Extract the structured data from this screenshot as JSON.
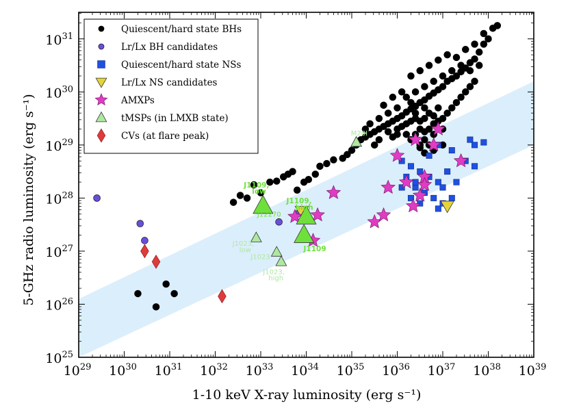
{
  "chart_data": {
    "type": "scatter",
    "xlabel": "1-10 keV X-ray luminosity (erg s⁻¹)",
    "ylabel": "5-GHz radio luminosity (erg s⁻¹)",
    "xscale": "log",
    "yscale": "log",
    "xlim_exp": [
      29,
      39
    ],
    "ylim_exp": [
      25,
      31.5
    ],
    "x_tick_exponents": [
      29,
      30,
      31,
      32,
      33,
      34,
      35,
      36,
      37,
      38,
      39
    ],
    "y_tick_exponents": [
      25,
      26,
      27,
      28,
      29,
      30,
      31
    ],
    "tick_base": "10",
    "legend_position": "top-left",
    "colors": {
      "bh": "#000000",
      "bh_candidate": "#6a4fd6",
      "ns": "#1f50e0",
      "ns_candidate": "#e3d43b",
      "amxp": "#e03bc4",
      "tmsp": "#aee8a0",
      "tmsp_bright": "#6fe03b",
      "cv": "#e03b3b",
      "band": "#dbeefb"
    },
    "band": {
      "lower_at_29": 25.0,
      "lower_at_39": 29.0,
      "upper_at_29": 26.1,
      "upper_at_39": 30.2
    },
    "series": [
      {
        "name": "Quiescent/hard state BHs",
        "marker": "circle",
        "color_key": "bh",
        "points": [
          [
            30.3,
            26.2
          ],
          [
            30.7,
            25.95
          ],
          [
            30.92,
            26.38
          ],
          [
            31.1,
            26.2
          ],
          [
            33.8,
            28.15
          ],
          [
            33.95,
            28.3
          ],
          [
            34.05,
            28.35
          ],
          [
            34.2,
            28.45
          ],
          [
            32.4,
            27.92
          ],
          [
            32.55,
            28.05
          ],
          [
            32.7,
            28.0
          ],
          [
            32.85,
            28.25
          ],
          [
            33.0,
            28.1
          ],
          [
            33.2,
            28.3
          ],
          [
            33.35,
            28.32
          ],
          [
            33.5,
            28.4
          ],
          [
            33.6,
            28.45
          ],
          [
            33.7,
            28.5
          ],
          [
            34.3,
            28.6
          ],
          [
            34.45,
            28.65
          ],
          [
            34.6,
            28.72
          ],
          [
            34.8,
            28.75
          ],
          [
            34.9,
            28.82
          ],
          [
            35.0,
            28.9
          ],
          [
            35.1,
            29.0
          ],
          [
            35.2,
            29.1
          ],
          [
            35.3,
            29.15
          ],
          [
            35.4,
            29.2
          ],
          [
            35.5,
            29.25
          ],
          [
            35.6,
            29.3
          ],
          [
            35.7,
            29.35
          ],
          [
            35.8,
            29.4
          ],
          [
            35.9,
            29.45
          ],
          [
            36.0,
            29.5
          ],
          [
            36.1,
            29.55
          ],
          [
            36.2,
            29.62
          ],
          [
            36.3,
            29.68
          ],
          [
            36.4,
            29.73
          ],
          [
            36.5,
            29.8
          ],
          [
            36.6,
            29.85
          ],
          [
            36.7,
            29.92
          ],
          [
            36.8,
            29.98
          ],
          [
            36.9,
            30.04
          ],
          [
            37.0,
            30.1
          ],
          [
            37.1,
            30.2
          ],
          [
            37.2,
            30.25
          ],
          [
            37.3,
            30.3
          ],
          [
            37.4,
            30.38
          ],
          [
            37.5,
            30.45
          ],
          [
            37.6,
            30.55
          ],
          [
            37.7,
            30.62
          ],
          [
            37.8,
            30.75
          ],
          [
            37.9,
            30.9
          ],
          [
            38.0,
            31.0
          ],
          [
            38.1,
            31.2
          ],
          [
            38.2,
            31.25
          ],
          [
            35.5,
            29.0
          ],
          [
            35.6,
            29.1
          ],
          [
            35.8,
            29.25
          ],
          [
            36.0,
            29.3
          ],
          [
            36.1,
            29.35
          ],
          [
            36.2,
            29.4
          ],
          [
            36.3,
            29.45
          ],
          [
            36.4,
            29.5
          ],
          [
            36.5,
            29.45
          ],
          [
            36.6,
            29.5
          ],
          [
            36.7,
            29.6
          ],
          [
            36.8,
            29.55
          ],
          [
            36.9,
            29.7
          ],
          [
            36.4,
            29.2
          ],
          [
            36.5,
            29.3
          ],
          [
            36.6,
            29.25
          ],
          [
            36.7,
            29.3
          ],
          [
            36.8,
            29.4
          ],
          [
            36.9,
            29.45
          ],
          [
            37.0,
            29.5
          ],
          [
            37.1,
            29.6
          ],
          [
            37.2,
            29.7
          ],
          [
            37.3,
            29.8
          ],
          [
            37.4,
            29.9
          ],
          [
            37.5,
            30.0
          ],
          [
            37.6,
            30.1
          ],
          [
            37.7,
            30.2
          ],
          [
            36.2,
            29.9
          ],
          [
            36.4,
            30.0
          ],
          [
            36.6,
            30.1
          ],
          [
            36.8,
            30.2
          ],
          [
            37.0,
            30.3
          ],
          [
            37.2,
            30.4
          ],
          [
            37.4,
            30.5
          ],
          [
            37.6,
            30.4
          ],
          [
            37.8,
            30.5
          ],
          [
            36.0,
            29.7
          ],
          [
            36.3,
            29.8
          ],
          [
            35.8,
            29.6
          ],
          [
            35.6,
            29.5
          ],
          [
            35.4,
            29.4
          ],
          [
            35.3,
            29.3
          ],
          [
            36.5,
            29.0
          ],
          [
            36.6,
            29.1
          ],
          [
            36.7,
            29.0
          ],
          [
            36.8,
            29.2
          ],
          [
            37.0,
            29.3
          ],
          [
            36.3,
            29.1
          ],
          [
            36.2,
            29.2
          ],
          [
            36.9,
            30.6
          ],
          [
            37.1,
            30.7
          ],
          [
            37.3,
            30.65
          ],
          [
            37.5,
            30.8
          ],
          [
            37.7,
            30.9
          ],
          [
            37.9,
            31.1
          ],
          [
            36.5,
            30.4
          ],
          [
            36.7,
            30.5
          ],
          [
            36.1,
            30.0
          ],
          [
            35.9,
            29.9
          ],
          [
            36.3,
            30.3
          ],
          [
            35.7,
            29.75
          ],
          [
            35.9,
            29.15
          ],
          [
            36.5,
            28.95
          ],
          [
            36.6,
            28.85
          ],
          [
            36.8,
            28.9
          ],
          [
            37.0,
            29.0
          ],
          [
            36.4,
            29.6
          ],
          [
            36.6,
            29.7
          ],
          [
            36.0,
            29.2
          ]
        ]
      },
      {
        "name": "Lr/Lx BH candidates",
        "marker": "circle",
        "color_key": "bh_candidate",
        "points": [
          [
            29.4,
            28.0
          ],
          [
            30.35,
            27.52
          ],
          [
            30.45,
            27.2
          ],
          [
            33.4,
            27.55
          ],
          [
            33.8,
            27.7
          ]
        ]
      },
      {
        "name": "Quiescent/hard state NSs",
        "marker": "square",
        "color_key": "ns",
        "points": [
          [
            36.3,
            28.6
          ],
          [
            36.5,
            28.5
          ],
          [
            36.7,
            28.4
          ],
          [
            36.9,
            28.3
          ],
          [
            37.1,
            28.5
          ],
          [
            37.3,
            28.3
          ],
          [
            37.5,
            28.7
          ],
          [
            37.7,
            28.6
          ],
          [
            36.4,
            28.2
          ],
          [
            36.6,
            28.1
          ],
          [
            36.8,
            28.0
          ],
          [
            37.0,
            28.2
          ],
          [
            37.2,
            28.0
          ],
          [
            36.5,
            27.9
          ],
          [
            36.3,
            28.0
          ],
          [
            36.9,
            27.8
          ],
          [
            37.2,
            28.9
          ],
          [
            37.6,
            29.1
          ],
          [
            37.7,
            29.0
          ],
          [
            37.9,
            29.05
          ],
          [
            36.2,
            28.4
          ],
          [
            36.1,
            28.2
          ],
          [
            36.7,
            28.8
          ],
          [
            36.9,
            29.0
          ],
          [
            36.1,
            28.7
          ],
          [
            37.0,
            27.9
          ],
          [
            36.4,
            28.3
          ]
        ]
      },
      {
        "name": "Lr/Lx NS candidates",
        "marker": "triangle-down",
        "color_key": "ns_candidate",
        "points": [
          [
            33.9,
            27.75
          ],
          [
            37.1,
            27.85
          ]
        ]
      },
      {
        "name": "AMXPs",
        "marker": "star",
        "color_key": "amxp",
        "points": [
          [
            33.75,
            27.65
          ],
          [
            34.15,
            27.2
          ],
          [
            34.25,
            27.68
          ],
          [
            34.6,
            28.1
          ],
          [
            35.5,
            27.55
          ],
          [
            35.7,
            27.68
          ],
          [
            35.8,
            28.2
          ],
          [
            36.0,
            28.8
          ],
          [
            36.2,
            28.3
          ],
          [
            36.4,
            29.1
          ],
          [
            36.6,
            28.4
          ],
          [
            36.8,
            29.0
          ],
          [
            36.9,
            29.3
          ],
          [
            36.35,
            27.85
          ],
          [
            36.5,
            28.05
          ],
          [
            36.6,
            28.25
          ],
          [
            37.4,
            28.7
          ]
        ]
      },
      {
        "name": "tMSPs (in LMXB state)",
        "marker": "triangle-up",
        "color_key": "tmsp",
        "points": [
          [
            32.9,
            27.25
          ],
          [
            33.35,
            26.98
          ],
          [
            33.45,
            26.8
          ],
          [
            35.1,
            29.05
          ],
          [
            33.05,
            27.85
          ],
          [
            34.0,
            27.65
          ],
          [
            33.95,
            27.3
          ]
        ]
      },
      {
        "name": "CVs (at flare peak)",
        "marker": "diamond",
        "color_key": "cv",
        "points": [
          [
            30.45,
            27.0
          ],
          [
            30.7,
            26.8
          ],
          [
            32.15,
            26.15
          ]
        ]
      }
    ],
    "annotations": [
      {
        "text": "J1109,",
        "color_key": "tmsp_bright",
        "bold": true
      },
      {
        "text": "low",
        "color_key": "tmsp_bright",
        "bold": true
      },
      {
        "text": "J1109,",
        "color_key": "tmsp_bright",
        "bold": true
      },
      {
        "text": "high",
        "color_key": "tmsp_bright",
        "bold": true
      },
      {
        "text": "J1109",
        "color_key": "tmsp_bright",
        "bold": true
      },
      {
        "text": "J12270",
        "color_key": "tmsp_bright",
        "bold": false
      },
      {
        "text": "J1023,",
        "color_key": "tmsp",
        "bold": false
      },
      {
        "text": "low",
        "color_key": "tmsp",
        "bold": false
      },
      {
        "text": "J1023",
        "color_key": "tmsp",
        "bold": false
      },
      {
        "text": "J1023,",
        "color_key": "tmsp",
        "bold": false
      },
      {
        "text": "high",
        "color_key": "tmsp",
        "bold": false
      },
      {
        "text": "M28I",
        "color_key": "tmsp",
        "bold": false
      }
    ]
  }
}
